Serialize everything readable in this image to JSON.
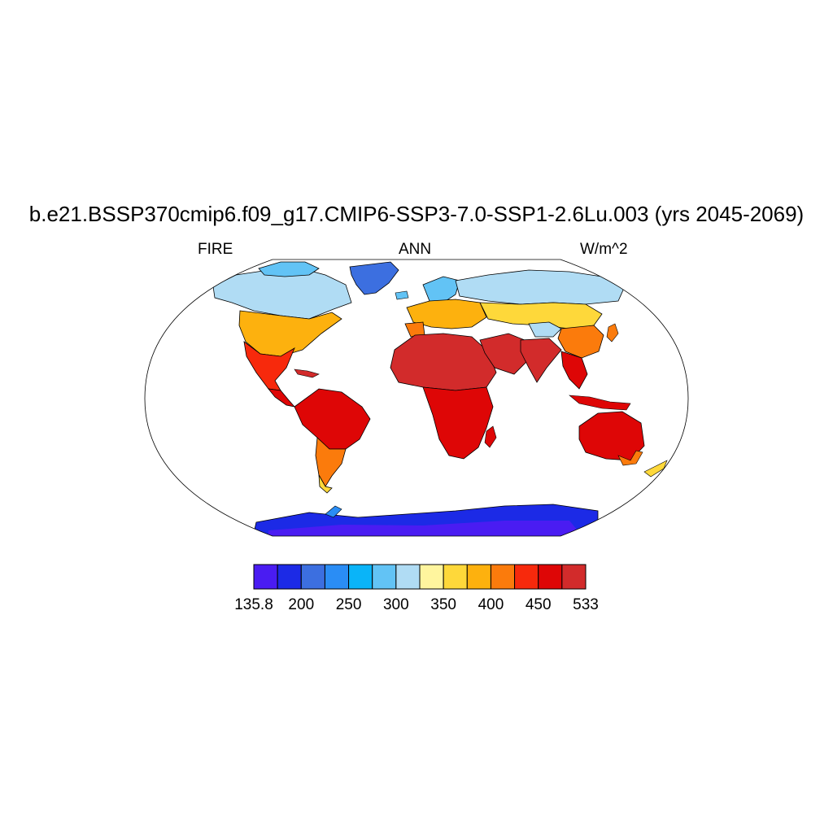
{
  "title": "b.e21.BSSP370cmip6.f09_g17.CMIP6-SSP3-7.0-SSP1-2.6Lu.003 (yrs 2045-2069)",
  "left_string": "FIRE",
  "center_string": "ANN",
  "right_string": "W/m^2",
  "projection": "Robinson",
  "colorbar": {
    "orientation": "horizontal",
    "colors": [
      "#4a1cf2",
      "#1c2ae6",
      "#3c6fe0",
      "#2a8df5",
      "#0ab4f8",
      "#62c3f5",
      "#b0dcf4",
      "#fff59e",
      "#fed83a",
      "#fdb10e",
      "#fb7b0c",
      "#f7290c",
      "#de0606",
      "#d22b2b"
    ],
    "labels": [
      "135.8",
      "200",
      "250",
      "300",
      "350",
      "400",
      "450",
      "533"
    ]
  },
  "chart_data": {
    "type": "heatmap",
    "variable": "FIRE",
    "period": "ANN",
    "units": "W/m^2",
    "range": [
      135.8,
      533
    ],
    "levels": [
      200,
      225,
      250,
      275,
      300,
      325,
      350,
      375,
      400,
      425,
      450,
      475,
      500
    ]
  }
}
